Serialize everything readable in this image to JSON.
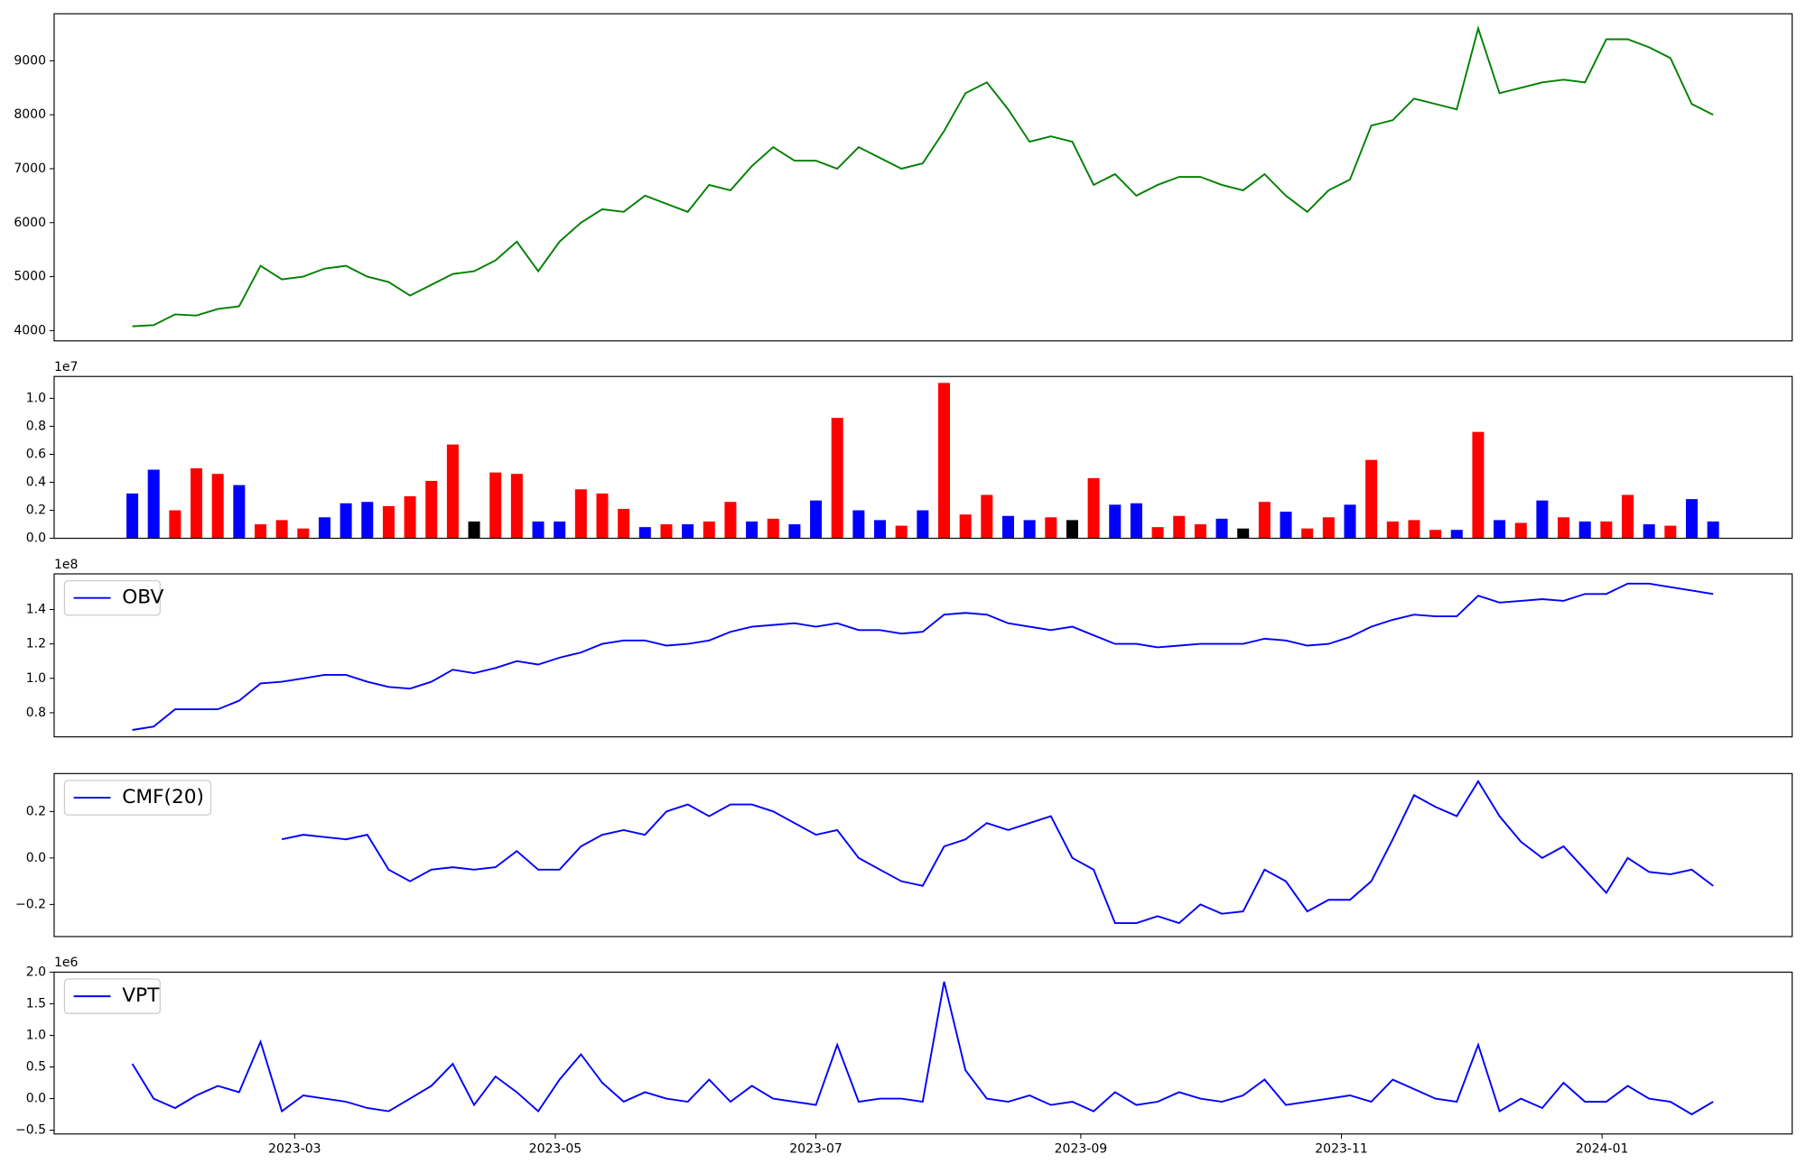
{
  "chart_data": {
    "type": "multi-panel",
    "x": [
      21,
      26,
      31,
      36,
      41,
      46,
      51,
      56,
      61,
      66,
      71,
      76,
      81,
      86,
      91,
      96,
      101,
      106,
      111,
      116,
      121,
      126,
      131,
      136,
      141,
      146,
      151,
      156,
      161,
      166,
      171,
      176,
      181,
      186,
      191,
      196,
      201,
      206,
      211,
      216,
      221,
      226,
      231,
      236,
      241,
      246,
      251,
      256,
      261,
      266,
      271,
      276,
      281,
      286,
      291,
      296,
      301,
      306,
      311,
      316,
      321,
      326,
      331,
      336,
      341,
      346,
      351,
      356,
      361,
      366,
      371,
      376,
      381,
      386,
      391
    ],
    "xlim": [
      2.7,
      409.5
    ],
    "xticks": [
      {
        "value": 59,
        "label": "2023-03"
      },
      {
        "value": 120,
        "label": "2023-05"
      },
      {
        "value": 181,
        "label": "2023-07"
      },
      {
        "value": 243,
        "label": "2023-09"
      },
      {
        "value": 304,
        "label": "2023-11"
      },
      {
        "value": 365,
        "label": "2024-01"
      }
    ],
    "panels": [
      {
        "type": "line",
        "ylim": [
          3809,
          9872
        ],
        "yticks": [
          4000,
          5000,
          6000,
          7000,
          8000,
          9000
        ],
        "series": [
          {
            "color": "green",
            "values": [
              4080,
              4100,
              4300,
              4280,
              4400,
              4450,
              5200,
              4950,
              5000,
              5150,
              5200,
              5000,
              4900,
              4650,
              4850,
              5050,
              5100,
              5300,
              5650,
              5100,
              5650,
              6000,
              6250,
              6200,
              6500,
              6350,
              6200,
              6700,
              6600,
              7050,
              7400,
              7150,
              7150,
              7000,
              7400,
              7200,
              7000,
              7100,
              7700,
              8400,
              8600,
              8100,
              7500,
              7600,
              7500,
              6700,
              6900,
              6500,
              6700,
              6850,
              6850,
              6700,
              6600,
              6900,
              6500,
              6200,
              6600,
              6800,
              7800,
              7900,
              8300,
              8200,
              8100,
              9600,
              8400,
              8500,
              8600,
              8650,
              8600,
              9400,
              9400,
              9250,
              9050,
              8200,
              8000
            ]
          }
        ]
      },
      {
        "type": "bar",
        "offset_text": "1e7",
        "ylim": [
          0,
          1.156
        ],
        "yticks": [
          {
            "value": 0,
            "label": "0.0"
          },
          0.2,
          0.4,
          0.6,
          0.8,
          {
            "value": 1,
            "label": "1.0"
          }
        ],
        "values": [
          0.32,
          0.49,
          0.2,
          0.5,
          0.46,
          0.38,
          0.1,
          0.13,
          0.07,
          0.15,
          0.25,
          0.26,
          0.23,
          0.3,
          0.41,
          0.67,
          0.12,
          0.47,
          0.46,
          0.12,
          0.12,
          0.35,
          0.32,
          0.21,
          0.08,
          0.1,
          0.1,
          0.12,
          0.26,
          0.12,
          0.14,
          0.1,
          0.27,
          0.86,
          0.2,
          0.13,
          0.09,
          0.2,
          1.11,
          0.17,
          0.31,
          0.16,
          0.13,
          0.15,
          0.13,
          0.43,
          0.24,
          0.25,
          0.08,
          0.16,
          0.1,
          0.14,
          0.07,
          0.26,
          0.19,
          0.07,
          0.15,
          0.24,
          0.56,
          0.12,
          0.13,
          0.06,
          0.06,
          0.76,
          0.13,
          0.11,
          0.27,
          0.15,
          0.12,
          0.12,
          0.31,
          0.1,
          0.09,
          0.28,
          0.12
        ],
        "colors": [
          "blue",
          "blue",
          "red",
          "red",
          "red",
          "blue",
          "red",
          "red",
          "red",
          "blue",
          "blue",
          "blue",
          "red",
          "red",
          "red",
          "red",
          "black",
          "red",
          "red",
          "blue",
          "blue",
          "red",
          "red",
          "red",
          "blue",
          "red",
          "blue",
          "red",
          "red",
          "blue",
          "red",
          "blue",
          "blue",
          "red",
          "blue",
          "blue",
          "red",
          "blue",
          "red",
          "red",
          "red",
          "blue",
          "blue",
          "red",
          "black",
          "red",
          "blue",
          "blue",
          "red",
          "red",
          "red",
          "blue",
          "black",
          "red",
          "blue",
          "red",
          "red",
          "blue",
          "red",
          "red",
          "red",
          "red",
          "blue",
          "red",
          "blue",
          "red",
          "blue",
          "red",
          "blue",
          "red",
          "red",
          "blue",
          "red",
          "blue",
          "blue"
        ]
      },
      {
        "type": "line",
        "ylim": [
          0.66,
          1.607
        ],
        "offset_text": "1e8",
        "legend": "upper left",
        "yticks": [
          0.8,
          {
            "value": 1,
            "label": "1.0"
          },
          1.2,
          1.4
        ],
        "series": [
          {
            "name": "OBV",
            "color": "blue",
            "values": [
              0.7,
              0.72,
              0.82,
              0.82,
              0.82,
              0.87,
              0.97,
              0.98,
              1.0,
              1.02,
              1.02,
              0.98,
              0.95,
              0.94,
              0.98,
              1.05,
              1.03,
              1.06,
              1.1,
              1.08,
              1.12,
              1.15,
              1.2,
              1.22,
              1.22,
              1.19,
              1.2,
              1.22,
              1.27,
              1.3,
              1.31,
              1.32,
              1.3,
              1.32,
              1.28,
              1.28,
              1.26,
              1.27,
              1.37,
              1.38,
              1.37,
              1.32,
              1.3,
              1.28,
              1.3,
              1.25,
              1.2,
              1.2,
              1.18,
              1.19,
              1.2,
              1.2,
              1.2,
              1.23,
              1.22,
              1.19,
              1.2,
              1.24,
              1.3,
              1.34,
              1.37,
              1.36,
              1.36,
              1.48,
              1.44,
              1.45,
              1.46,
              1.45,
              1.49,
              1.49,
              1.55,
              1.55,
              1.53,
              1.51,
              1.49
            ]
          }
        ]
      },
      {
        "type": "line",
        "ylim": [
          -0.338,
          0.363
        ],
        "legend": "upper left",
        "yticks": [
          {
            "value": -0.2,
            "label": "−0.2"
          },
          {
            "value": 0,
            "label": "0.0"
          },
          0.2
        ],
        "series": [
          {
            "name": "CMF(20)",
            "color": "blue",
            "values": [
              null,
              null,
              null,
              null,
              null,
              null,
              null,
              0.08,
              0.1,
              0.09,
              0.08,
              0.1,
              -0.05,
              -0.1,
              -0.05,
              -0.04,
              -0.05,
              -0.04,
              0.03,
              -0.05,
              -0.05,
              0.05,
              0.1,
              0.12,
              0.1,
              0.2,
              0.23,
              0.18,
              0.23,
              0.23,
              0.2,
              0.15,
              0.1,
              0.12,
              0.0,
              -0.05,
              -0.1,
              -0.12,
              0.05,
              0.08,
              0.15,
              0.12,
              0.15,
              0.18,
              0.0,
              -0.05,
              -0.28,
              -0.28,
              -0.25,
              -0.28,
              -0.2,
              -0.24,
              -0.23,
              -0.05,
              -0.1,
              -0.23,
              -0.18,
              -0.18,
              -0.1,
              0.08,
              0.27,
              0.22,
              0.18,
              0.33,
              0.18,
              0.07,
              0.0,
              0.05,
              -0.05,
              -0.15,
              0.0,
              -0.06,
              -0.07,
              -0.05,
              -0.12
            ]
          }
        ]
      },
      {
        "type": "line",
        "ylim": [
          -0.56,
          2.0
        ],
        "offset_text": "1e6",
        "legend": "upper left",
        "yticks": [
          {
            "value": -0.5,
            "label": "−0.5"
          },
          {
            "value": 0,
            "label": "0.0"
          },
          0.5,
          {
            "value": 1,
            "label": "1.0"
          },
          1.5,
          {
            "value": 2,
            "label": "2.0"
          }
        ],
        "series": [
          {
            "name": "VPT",
            "color": "blue",
            "values": [
              0.55,
              0.0,
              -0.15,
              0.05,
              0.2,
              0.1,
              0.9,
              -0.2,
              0.05,
              0.0,
              -0.05,
              -0.15,
              -0.2,
              0.0,
              0.2,
              0.55,
              -0.1,
              0.35,
              0.1,
              -0.2,
              0.3,
              0.7,
              0.25,
              -0.05,
              0.1,
              0.0,
              -0.05,
              0.3,
              -0.05,
              0.2,
              0.0,
              -0.05,
              -0.1,
              0.85,
              -0.05,
              0.0,
              0.0,
              -0.05,
              1.85,
              0.45,
              0.0,
              -0.05,
              0.05,
              -0.1,
              -0.05,
              -0.2,
              0.1,
              -0.1,
              -0.05,
              0.1,
              0.0,
              -0.05,
              0.05,
              0.3,
              -0.1,
              -0.05,
              0.0,
              0.05,
              -0.05,
              0.3,
              0.15,
              0.0,
              -0.05,
              0.85,
              -0.2,
              0.0,
              -0.15,
              0.25,
              -0.05,
              -0.05,
              0.2,
              0.0,
              -0.05,
              -0.25,
              -0.05
            ]
          }
        ]
      }
    ]
  }
}
